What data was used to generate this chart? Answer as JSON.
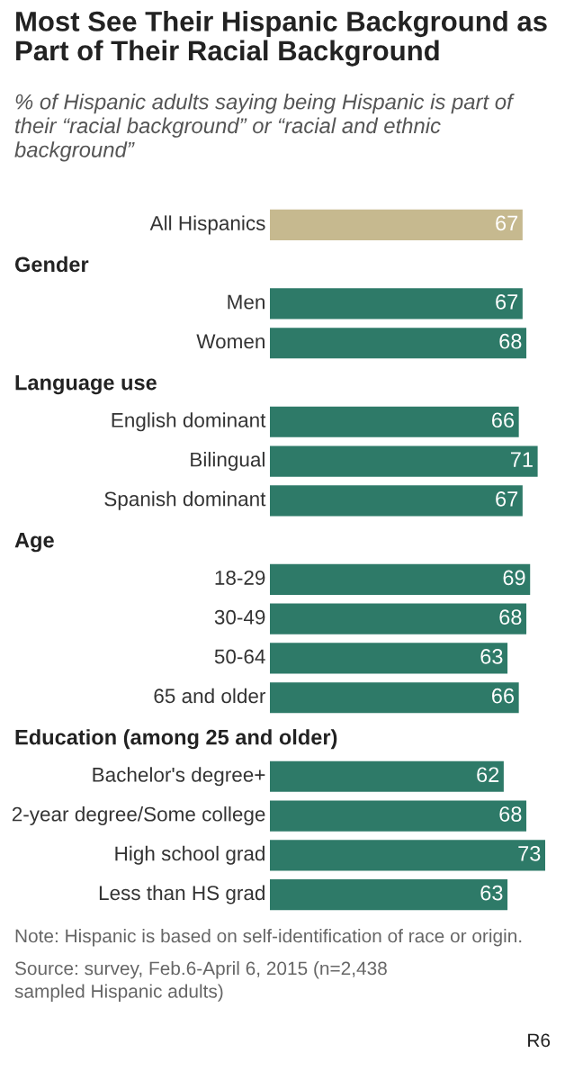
{
  "chart_data": {
    "type": "bar",
    "orientation": "horizontal",
    "title": "Most See Their Hispanic Background as\nPart of Their Racial Background",
    "subtitle": "% of Hispanic adults saying being Hispanic is part of\ntheir “racial background” or “racial and ethnic\nbackground”",
    "categories": [
      "All Hispanics",
      null,
      "Men",
      "Women",
      null,
      "English dominant",
      "Bilingual",
      "Spanish dominant",
      null,
      "18-29",
      "30-49",
      "50-64",
      "65 and older",
      null,
      "Bachelor's degree+",
      "2-year degree/Some college",
      "High school grad",
      "Less than HS grad"
    ],
    "values": [
      67,
      null,
      67,
      68,
      null,
      66,
      71,
      67,
      null,
      69,
      68,
      63,
      66,
      null,
      62,
      68,
      73,
      63
    ],
    "colors": [
      "#c6b98f",
      null,
      "#2e7a68",
      "#2e7a68",
      null,
      "#2e7a68",
      "#2e7a68",
      "#2e7a68",
      null,
      "#2e7a68",
      "#2e7a68",
      "#2e7a68",
      "#2e7a68",
      null,
      "#2e7a68",
      "#2e7a68",
      "#2e7a68",
      "#2e7a68"
    ],
    "data_labels": true,
    "legend": false,
    "annotations": [
      "Gender",
      "Language use",
      "Age",
      "Education (among 25 and older)",
      "Note: Hispanic is based on self-identification of race or origin.",
      "Source: survey, Feb.6-April 6, 2015 (n=2,438\nsampled Hispanic adults)",
      "R6"
    ]
  }
}
